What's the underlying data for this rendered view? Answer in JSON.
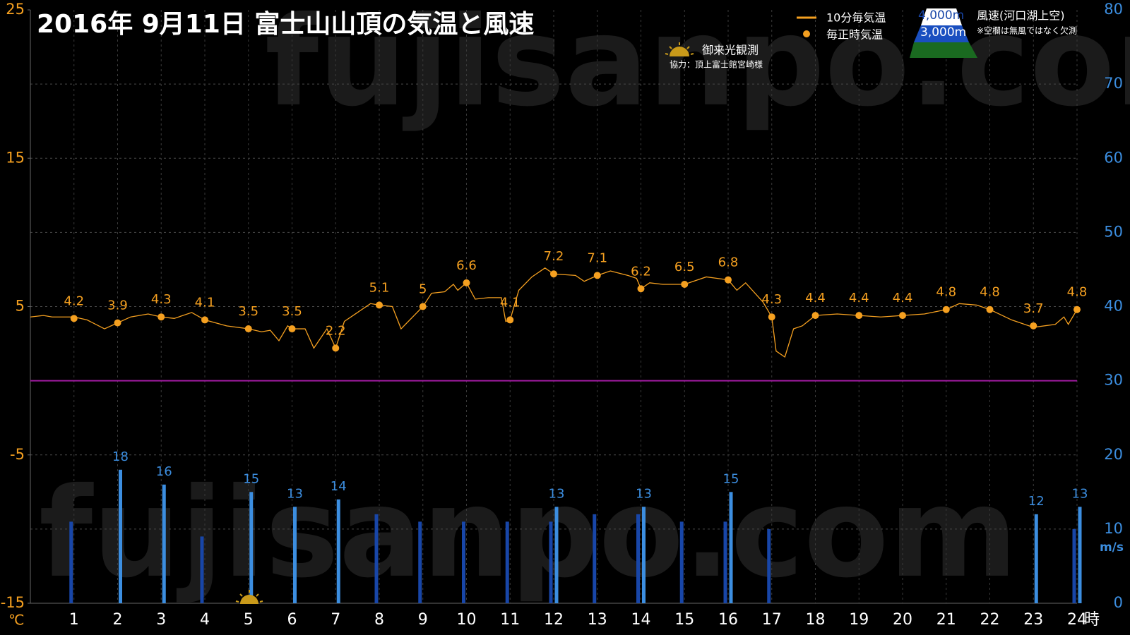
{
  "chart_data": {
    "type": "combo",
    "title": "2016年  9月11日   富士山山頂の気温と風速",
    "background": "#000000",
    "grid": true,
    "watermark": "fujisanpo.com",
    "y_unit": "℃",
    "y2_unit": "m/s",
    "x_unit": "時",
    "legend_wind_title": "風速(河口湖上空)",
    "legend_wind_note": "※空欄は無風ではなく欠測",
    "sunrise_label": "御来光観測",
    "sunrise_credit": "協力：頂上富士館宮崎様",
    "xlim": [
      0,
      24
    ],
    "xticks": [
      1,
      2,
      3,
      4,
      5,
      6,
      7,
      8,
      9,
      10,
      11,
      12,
      13,
      14,
      15,
      16,
      17,
      18,
      19,
      20,
      21,
      22,
      23,
      24
    ],
    "ylim": [
      -15,
      25
    ],
    "yticks": [
      -15,
      -5,
      5,
      15,
      25
    ],
    "y2lim": [
      0,
      80
    ],
    "y2ticks": [
      0,
      10,
      20,
      30,
      40,
      50,
      60,
      70,
      80
    ],
    "reference_line": {
      "value": 0,
      "color": "#a01aa0"
    },
    "x": [
      1,
      2,
      3,
      4,
      5,
      6,
      7,
      8,
      9,
      10,
      11,
      12,
      13,
      14,
      15,
      16,
      17,
      18,
      19,
      20,
      21,
      22,
      23,
      24
    ],
    "series": [
      {
        "name": "10分毎気温",
        "type": "line",
        "color": "#f5a020",
        "x": [
          0,
          0.3,
          0.5,
          1,
          1.3,
          1.7,
          2,
          2.3,
          2.7,
          3,
          3.3,
          3.7,
          4,
          4.5,
          5,
          5.3,
          5.5,
          5.7,
          5.9,
          6,
          6.3,
          6.5,
          6.8,
          7,
          7.2,
          7.5,
          7.8,
          8,
          8.3,
          8.5,
          9,
          9.2,
          9.5,
          9.7,
          9.8,
          10,
          10.2,
          10.5,
          10.8,
          10.9,
          11,
          11.2,
          11.5,
          11.8,
          12,
          12.5,
          12.7,
          13,
          13.3,
          13.7,
          13.9,
          14,
          14.2,
          14.5,
          15,
          15.5,
          16,
          16.2,
          16.4,
          16.8,
          17,
          17.1,
          17.3,
          17.5,
          17.7,
          18,
          18.5,
          19,
          19.5,
          20,
          20.5,
          21,
          21.3,
          21.7,
          22,
          22.5,
          23,
          23.5,
          23.7,
          23.8,
          24
        ],
        "values": [
          4.3,
          4.4,
          4.3,
          4.3,
          4.1,
          3.5,
          3.9,
          4.3,
          4.5,
          4.3,
          4.2,
          4.6,
          4.1,
          3.7,
          3.5,
          3.3,
          3.4,
          2.7,
          3.7,
          3.5,
          3.5,
          2.2,
          3.5,
          2.2,
          4.0,
          4.6,
          5.2,
          5.1,
          5.0,
          3.5,
          5.0,
          5.9,
          6.0,
          6.5,
          6.1,
          6.6,
          5.5,
          5.6,
          5.6,
          4.0,
          4.1,
          6.1,
          7.0,
          7.6,
          7.2,
          7.1,
          6.7,
          7.1,
          7.4,
          7.1,
          6.9,
          6.2,
          6.6,
          6.5,
          6.5,
          7.0,
          6.8,
          6.1,
          6.6,
          5.3,
          4.3,
          2.0,
          1.6,
          3.5,
          3.7,
          4.4,
          4.5,
          4.4,
          4.3,
          4.4,
          4.5,
          4.8,
          5.2,
          5.1,
          4.8,
          4.1,
          3.6,
          3.8,
          4.3,
          3.8,
          4.8
        ]
      },
      {
        "name": "毎正時気温",
        "type": "scatter",
        "color": "#f5a020",
        "values": [
          4.2,
          3.9,
          4.3,
          4.1,
          3.5,
          3.5,
          2.2,
          5.1,
          5,
          6.6,
          4.1,
          7.2,
          7.1,
          6.2,
          6.5,
          6.8,
          4.3,
          4.4,
          4.4,
          4.4,
          4.8,
          4.8,
          3.7,
          4.8
        ]
      },
      {
        "name": "4,000m",
        "type": "bar",
        "axis": "y2",
        "color": "#3c8ee0",
        "values": [
          null,
          18,
          16,
          null,
          15,
          13,
          14,
          null,
          null,
          null,
          null,
          13,
          null,
          13,
          null,
          15,
          null,
          null,
          null,
          null,
          null,
          null,
          12,
          13
        ]
      },
      {
        "name": "3,000m",
        "type": "bar",
        "axis": "y2",
        "color": "#1846a8",
        "values": [
          11,
          null,
          null,
          9,
          null,
          null,
          null,
          12,
          11,
          11,
          11,
          11,
          12,
          12,
          11,
          11,
          10,
          null,
          null,
          null,
          null,
          null,
          null,
          10
        ]
      }
    ]
  }
}
